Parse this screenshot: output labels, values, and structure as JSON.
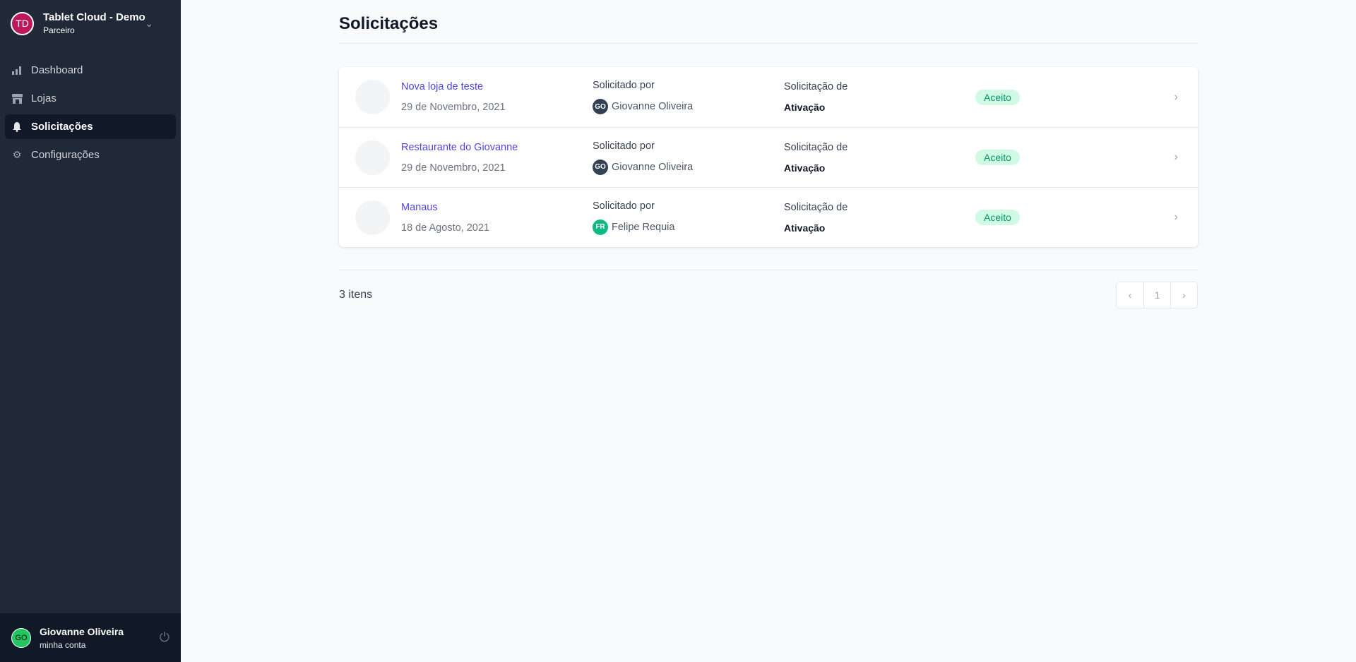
{
  "sidebar": {
    "org": {
      "initials": "TD",
      "name": "Tablet Cloud - Demo",
      "role": "Parceiro",
      "avatar_color": "#be185d"
    },
    "items": [
      {
        "label": "Dashboard",
        "icon": "bar-chart-icon"
      },
      {
        "label": "Lojas",
        "icon": "store-icon"
      },
      {
        "label": "Solicitações",
        "icon": "bell-icon",
        "active": true
      },
      {
        "label": "Configurações",
        "icon": "gear-icon"
      }
    ],
    "user": {
      "initials": "GO",
      "name": "Giovanne Oliveira",
      "link": "minha conta"
    }
  },
  "main": {
    "title": "Solicitações",
    "rows": [
      {
        "name": "Nova loja de teste",
        "date": "29 de Novembro, 2021",
        "requested_label": "Solicitado por",
        "requester_initials": "GO",
        "requester": "Giovanne Oliveira",
        "type_label": "Solicitação de",
        "type": "Ativação",
        "status": "Aceito"
      },
      {
        "name": "Restaurante do Giovanne",
        "date": "29 de Novembro, 2021",
        "requested_label": "Solicitado por",
        "requester_initials": "GO",
        "requester": "Giovanne Oliveira",
        "type_label": "Solicitação de",
        "type": "Ativação",
        "status": "Aceito"
      },
      {
        "name": "Manaus",
        "date": "18 de Agosto, 2021",
        "requested_label": "Solicitado por",
        "requester_initials": "FR",
        "requester": "Felipe Requia",
        "type_label": "Solicitação de",
        "type": "Ativação",
        "status": "Aceito"
      }
    ],
    "count": "3 itens",
    "pagination": {
      "prev": "‹",
      "page": "1",
      "next": "›"
    }
  }
}
